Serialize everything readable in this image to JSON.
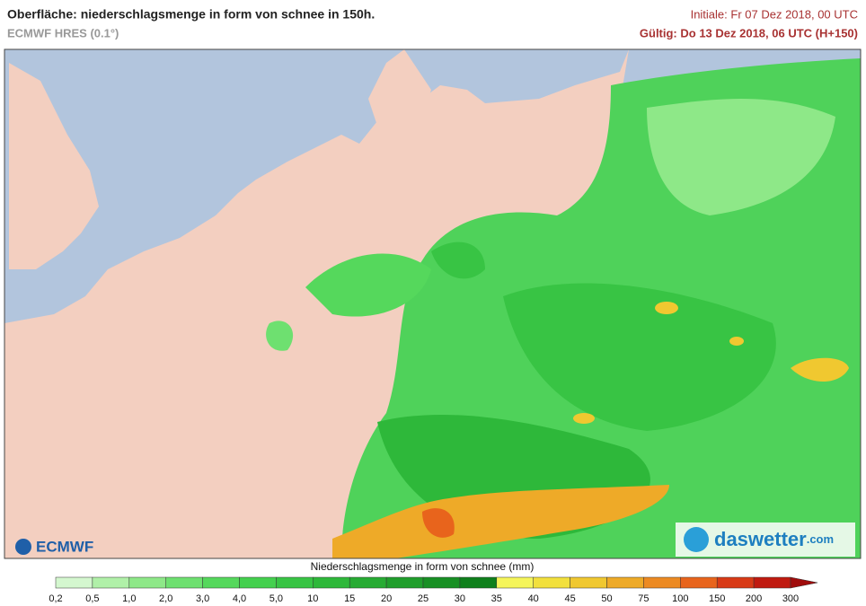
{
  "header": {
    "title": "Oberfläche: niederschlagsmenge in form von schnee in 150h.",
    "model": "ECMWF HRES (0.1°)",
    "init": "Initiale: Fr 07 Dez 2018, 00 UTC",
    "valid": "Gültig: Do 13 Dez 2018, 06 UTC (H+150)"
  },
  "logos": {
    "left": "ECMWF",
    "right_brand": "daswetter",
    "right_domain": ".com"
  },
  "legend": {
    "title": "Niederschlagsmenge in form von schnee (mm)",
    "ticks": [
      "0,2",
      "0,5",
      "1,0",
      "2,0",
      "3,0",
      "4,0",
      "5,0",
      "10",
      "15",
      "20",
      "25",
      "30",
      "35",
      "40",
      "45",
      "50",
      "75",
      "100",
      "150",
      "200",
      "300"
    ],
    "colors": [
      "#d4f7cf",
      "#b0f0a8",
      "#8ee888",
      "#6ee070",
      "#55d85c",
      "#44d04e",
      "#38c444",
      "#2eb83a",
      "#27ab33",
      "#209e2c",
      "#189024",
      "#0f801c",
      "#f5f55a",
      "#f2e03c",
      "#f0c830",
      "#eeaa28",
      "#ec8a22",
      "#e8641c",
      "#d83a16",
      "#c01a10"
    ],
    "arrow_color": "#a00c0c"
  }
}
